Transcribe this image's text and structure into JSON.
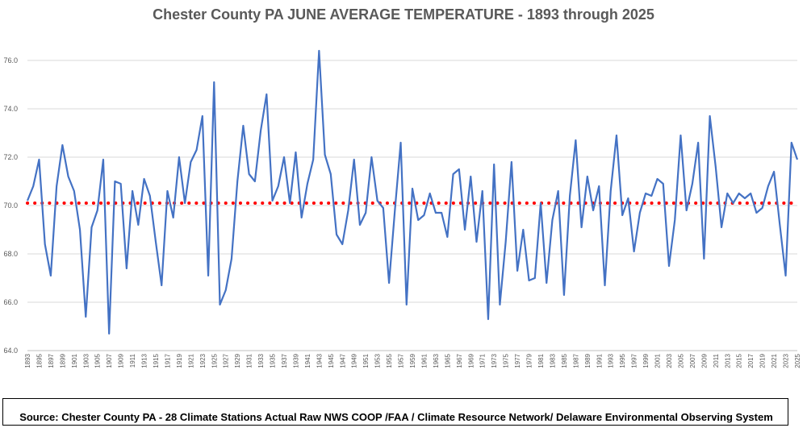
{
  "chart_data": {
    "type": "line",
    "title": "Chester County PA JUNE AVERAGE TEMPERATURE - 1893 through 2025",
    "xlabel": "",
    "ylabel": "",
    "ylim": [
      64.0,
      77.0
    ],
    "yticks": [
      "64.0",
      "66.0",
      "68.0",
      "70.0",
      "72.0",
      "74.0",
      "76.0"
    ],
    "x": [
      1893,
      1894,
      1895,
      1896,
      1897,
      1898,
      1899,
      1900,
      1901,
      1902,
      1903,
      1904,
      1905,
      1906,
      1907,
      1908,
      1909,
      1910,
      1911,
      1912,
      1913,
      1914,
      1915,
      1916,
      1917,
      1918,
      1919,
      1920,
      1921,
      1922,
      1923,
      1924,
      1925,
      1926,
      1927,
      1928,
      1929,
      1930,
      1931,
      1932,
      1933,
      1934,
      1935,
      1936,
      1937,
      1938,
      1939,
      1940,
      1941,
      1942,
      1943,
      1944,
      1945,
      1946,
      1947,
      1948,
      1949,
      1950,
      1951,
      1952,
      1953,
      1954,
      1955,
      1956,
      1957,
      1958,
      1959,
      1960,
      1961,
      1962,
      1963,
      1964,
      1965,
      1966,
      1967,
      1968,
      1969,
      1970,
      1971,
      1972,
      1973,
      1974,
      1975,
      1976,
      1977,
      1978,
      1979,
      1980,
      1981,
      1982,
      1983,
      1984,
      1985,
      1986,
      1987,
      1988,
      1989,
      1990,
      1991,
      1992,
      1993,
      1994,
      1995,
      1996,
      1997,
      1998,
      1999,
      2000,
      2001,
      2002,
      2003,
      2004,
      2005,
      2006,
      2007,
      2008,
      2009,
      2010,
      2011,
      2012,
      2013,
      2014,
      2015,
      2016,
      2017,
      2018,
      2019,
      2020,
      2021,
      2022,
      2023,
      2024,
      2025
    ],
    "series": [
      {
        "color": "#4472C4",
        "values": [
          70.2,
          70.8,
          71.9,
          68.4,
          67.1,
          70.8,
          72.5,
          71.2,
          70.6,
          69.0,
          65.4,
          69.1,
          69.8,
          71.9,
          64.7,
          71.0,
          70.9,
          67.4,
          70.6,
          69.2,
          71.1,
          70.4,
          68.5,
          66.7,
          70.6,
          69.5,
          72.0,
          70.1,
          71.8,
          72.3,
          73.7,
          67.1,
          75.1,
          65.9,
          66.5,
          67.8,
          71.0,
          73.3,
          71.3,
          71.0,
          73.1,
          74.6,
          70.2,
          70.8,
          72.0,
          70.1,
          72.2,
          69.5,
          70.9,
          71.9,
          76.4,
          72.1,
          71.3,
          68.8,
          68.4,
          69.8,
          71.9,
          69.2,
          69.7,
          72.0,
          70.2,
          69.9,
          66.8,
          69.8,
          72.6,
          65.9,
          70.7,
          69.4,
          69.6,
          70.5,
          69.7,
          69.7,
          68.7,
          71.3,
          71.5,
          69.0,
          71.2,
          68.5,
          70.6,
          65.3,
          71.7,
          65.9,
          68.5,
          71.8,
          67.3,
          69.0,
          66.9,
          67.0,
          70.1,
          66.8,
          69.4,
          70.6,
          66.3,
          70.4,
          72.7,
          69.1,
          71.2,
          69.8,
          70.8,
          66.7,
          70.6,
          72.9,
          69.6,
          70.3,
          68.1,
          69.7,
          70.5,
          70.4,
          71.1,
          70.9,
          67.5,
          69.4,
          72.9,
          69.8,
          70.9,
          72.6,
          67.8,
          73.7,
          71.6,
          69.1,
          70.5,
          70.1,
          70.5,
          70.3,
          70.5,
          69.7,
          69.9,
          70.8,
          71.4,
          69.2,
          67.1,
          72.6,
          71.9
        ]
      }
    ],
    "reference_line": {
      "value": 70.1,
      "color": "#FF0000",
      "style": "dotted"
    },
    "grid": "horizontal",
    "legend": "none"
  },
  "footer": {
    "source": "Source: Chester County PA - 28 Climate Stations Actual Raw NWS COOP /FAA / Climate Resource Network/ Delaware Environmental Observing System"
  }
}
